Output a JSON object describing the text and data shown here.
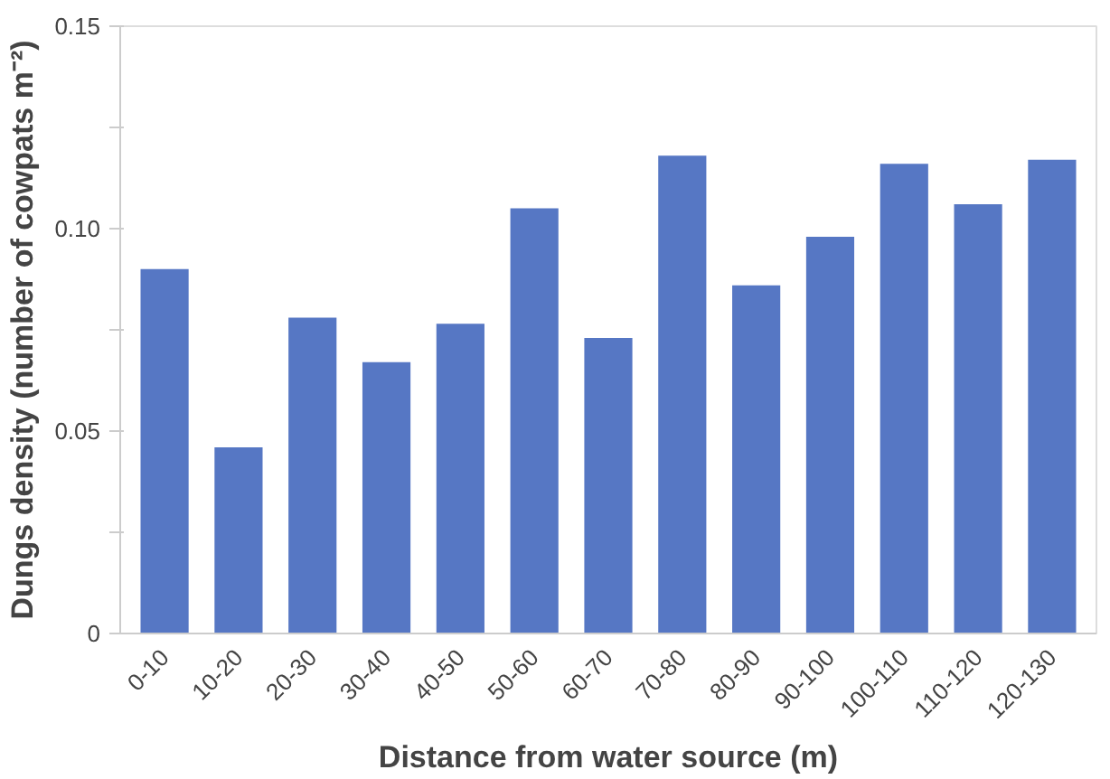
{
  "chart_data": {
    "type": "bar",
    "xlabel": "Distance from water source (m)",
    "ylabel": "Dungs density (number of cowpats m⁻²)",
    "categories": [
      "0-10",
      "10-20",
      "20-30",
      "30-40",
      "40-50",
      "50-60",
      "60-70",
      "70-80",
      "80-90",
      "90-100",
      "100-110",
      "110-120",
      "120-130"
    ],
    "values": [
      0.09,
      0.046,
      0.078,
      0.067,
      0.0765,
      0.105,
      0.073,
      0.118,
      0.086,
      0.098,
      0.116,
      0.106,
      0.117
    ],
    "color": "#5677c4",
    "ylim": [
      0,
      0.15
    ],
    "yticks": [
      0,
      {
        "value": 0.025,
        "label": null
      },
      {
        "value": 0.05,
        "label": "0.05"
      },
      {
        "value": 0.075,
        "label": null
      },
      {
        "value": 0.1,
        "label": "0.10"
      },
      {
        "value": 0.125,
        "label": null
      },
      {
        "value": 0.15,
        "label": "0.15"
      }
    ],
    "grid": false
  }
}
